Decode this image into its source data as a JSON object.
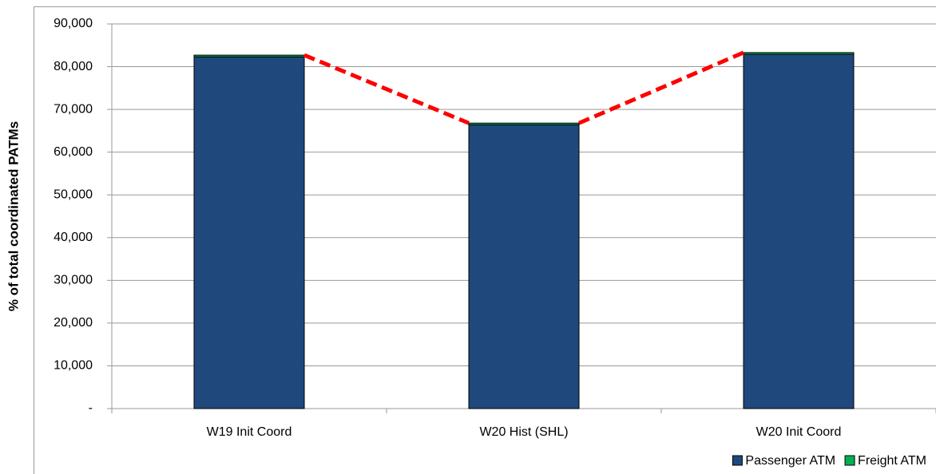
{
  "chart_data": {
    "type": "stacked_bar",
    "ylabel": "% of total coordinated PATMs",
    "categories": [
      "W19 Init Coord",
      "W20 Hist (SHL)",
      "W20 Init Coord"
    ],
    "series": [
      {
        "name": "Passenger ATM",
        "color": "#1f497d",
        "values": [
          82300,
          66400,
          82900
        ]
      },
      {
        "name": "Freight ATM",
        "color": "#00b050",
        "values": [
          400,
          400,
          400
        ]
      }
    ],
    "ylim": [
      0,
      90000
    ],
    "yticks": [
      {
        "value": 0,
        "label": "-"
      },
      {
        "value": 10000,
        "label": "10,000"
      },
      {
        "value": 20000,
        "label": "20,000"
      },
      {
        "value": 30000,
        "label": "30,000"
      },
      {
        "value": 40000,
        "label": "40,000"
      },
      {
        "value": 50000,
        "label": "50,000"
      },
      {
        "value": 60000,
        "label": "60,000"
      },
      {
        "value": 70000,
        "label": "70,000"
      },
      {
        "value": 80000,
        "label": "80,000"
      },
      {
        "value": 90000,
        "label": "90,000"
      }
    ],
    "grid": true,
    "connector": {
      "color": "#ff0000",
      "dashed": true
    },
    "legend": "bottom-right"
  }
}
